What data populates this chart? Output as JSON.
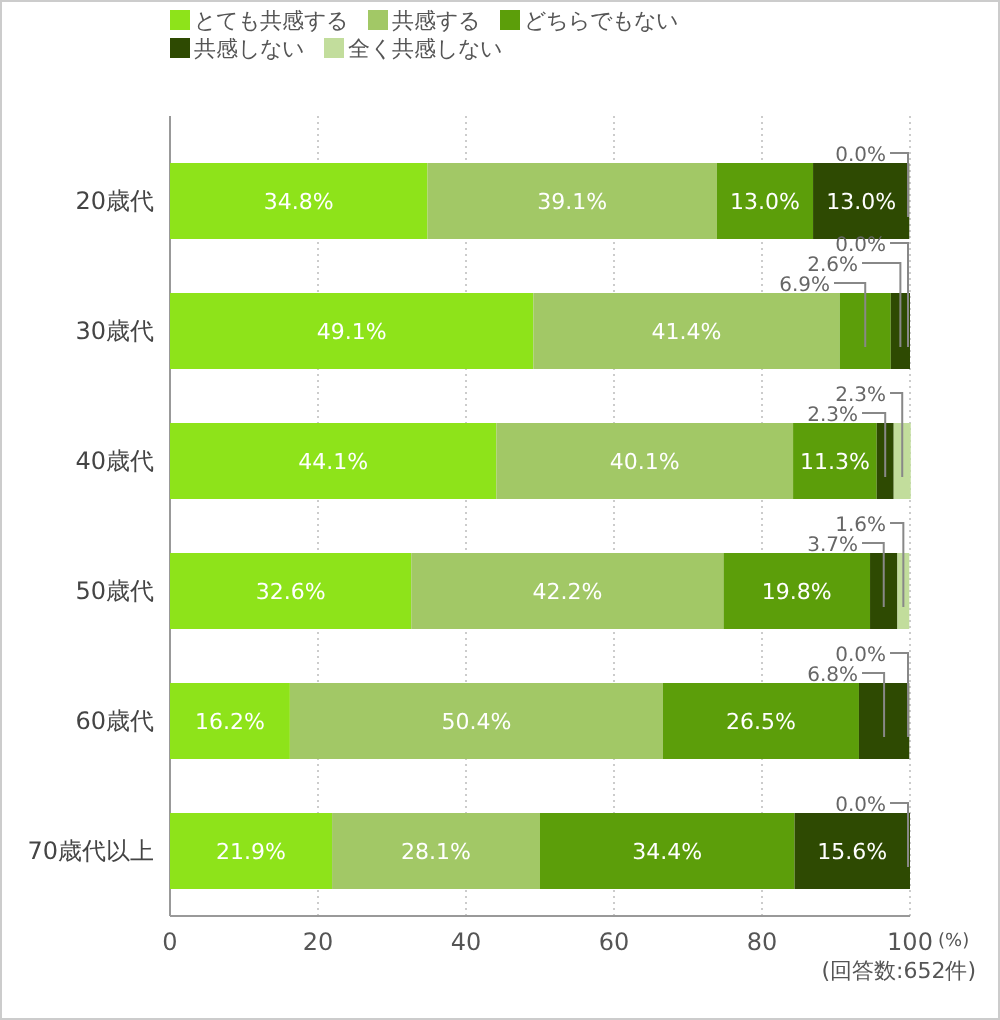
{
  "chart_data": {
    "type": "bar",
    "orientation": "horizontal",
    "stacked": true,
    "categories": [
      "20歳代",
      "30歳代",
      "40歳代",
      "50歳代",
      "60歳代",
      "70歳代以上"
    ],
    "series": [
      {
        "name": "とても共感する",
        "color": "#8ee31a",
        "values": [
          34.8,
          49.1,
          44.1,
          32.6,
          16.2,
          21.9
        ],
        "value_labels": [
          "34.8%",
          "49.1%",
          "44.1%",
          "32.6%",
          "16.2%",
          "21.9%"
        ]
      },
      {
        "name": "共感する",
        "color": "#a2c866",
        "values": [
          39.1,
          41.4,
          40.1,
          42.2,
          50.4,
          28.1
        ],
        "value_labels": [
          "39.1%",
          "41.4%",
          "40.1%",
          "42.2%",
          "50.4%",
          "28.1%"
        ]
      },
      {
        "name": "どちらでもない",
        "color": "#5c9e0a",
        "values": [
          13.0,
          6.9,
          11.3,
          19.8,
          26.5,
          34.4
        ],
        "value_labels": [
          "13.0%",
          "6.9%",
          "11.3%",
          "19.8%",
          "26.5%",
          "34.4%"
        ]
      },
      {
        "name": "共感しない",
        "color": "#2e4a02",
        "values": [
          13.0,
          2.6,
          2.3,
          3.7,
          6.8,
          15.6
        ],
        "value_labels": [
          "13.0%",
          "2.6%",
          "2.3%",
          "3.7%",
          "6.8%",
          "15.6%"
        ]
      },
      {
        "name": "全く共感しない",
        "color": "#c2dd9c",
        "values": [
          0.0,
          0.0,
          2.3,
          1.6,
          0.0,
          0.0
        ],
        "value_labels": [
          "0.0%",
          "0.0%",
          "2.3%",
          "1.6%",
          "0.0%",
          "0.0%"
        ]
      }
    ],
    "xlim": [
      0,
      100
    ],
    "xticks": [
      0,
      20,
      40,
      60,
      80,
      100
    ],
    "xlabel": "(%)",
    "grid": "x",
    "legend": "top left",
    "annotations": [
      "(回答数:652件)"
    ]
  }
}
